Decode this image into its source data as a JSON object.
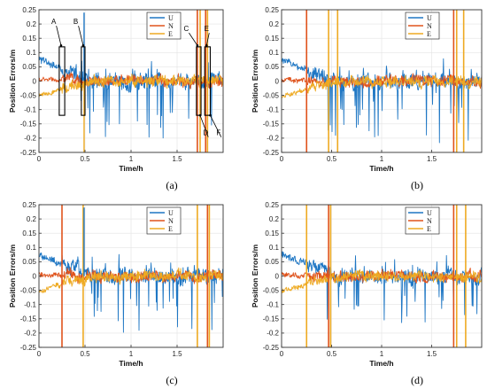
{
  "colors": {
    "U": "#1f77c4",
    "N": "#e0531c",
    "E": "#eeaa22",
    "axis": "#333333",
    "grid": "#e3e3e3"
  },
  "chart_data": [
    {
      "type": "line",
      "panel": "a",
      "caption": "(a)",
      "xlabel": "Time/h",
      "ylabel": "Position Errors/m",
      "xlim": [
        0,
        2
      ],
      "ylim": [
        -0.25,
        0.25
      ],
      "xticks": [
        "0",
        "0.5",
        "1",
        "1.5"
      ],
      "yticks": [
        "0.25",
        "0.2",
        "0.15",
        "0.1",
        "0.05",
        "0",
        "-0.05",
        "-0.1",
        "-0.15",
        "-0.2",
        "-0.25"
      ],
      "grid": true,
      "legend_position": "top-right",
      "series": [
        {
          "name": "U",
          "baseline_start": 0.075,
          "baseline_end": 0.0,
          "noise_amplitude": 0.05,
          "dip_depth": -0.2
        },
        {
          "name": "N",
          "baseline_start": 0.005,
          "baseline_end": 0.0,
          "noise_amplitude": 0.035
        },
        {
          "name": "E",
          "baseline_start": -0.055,
          "baseline_end": 0.0,
          "noise_amplitude": 0.035
        }
      ],
      "spikes": [
        {
          "series": "N",
          "x": 1.72
        },
        {
          "series": "E",
          "x": 1.75
        },
        {
          "series": "N",
          "x": 1.81
        },
        {
          "series": "E",
          "x": 1.83
        }
      ],
      "short_spikes": [
        {
          "series": "U",
          "x": 0.49,
          "y": 0.24
        },
        {
          "series": "E",
          "x": 0.49,
          "y": -0.25
        }
      ],
      "annotation_labels": [
        "A",
        "B",
        "C",
        "D",
        "E",
        "F"
      ],
      "highlight_boxes": [
        {
          "label": "A",
          "x0": 0.22,
          "x1": 0.28,
          "y0": -0.12,
          "y1": 0.12
        },
        {
          "label": "B",
          "x0": 0.46,
          "x1": 0.5,
          "y0": -0.12,
          "y1": 0.12
        },
        {
          "label": "D",
          "x0": 1.71,
          "x1": 1.76,
          "y0": -0.12,
          "y1": 0.12
        },
        {
          "label": "F",
          "x0": 1.8,
          "x1": 1.86,
          "y0": -0.12,
          "y1": 0.12
        }
      ]
    },
    {
      "type": "line",
      "panel": "b",
      "caption": "(b)",
      "xlabel": "Time/h",
      "ylabel": "Position Errors/m",
      "xlim": [
        0,
        2
      ],
      "ylim": [
        -0.25,
        0.25
      ],
      "xticks": [
        "0",
        "0.5",
        "1",
        "1.5"
      ],
      "yticks": [
        "0.25",
        "0.2",
        "0.15",
        "0.1",
        "0.05",
        "0",
        "-0.05",
        "-0.1",
        "-0.15",
        "-0.2",
        "-0.25"
      ],
      "grid": true,
      "legend_position": "top-right",
      "series": [
        {
          "name": "U",
          "baseline_start": 0.075,
          "baseline_end": 0.0,
          "noise_amplitude": 0.05,
          "dip_depth": -0.22
        },
        {
          "name": "N",
          "baseline_start": 0.005,
          "baseline_end": 0.0,
          "noise_amplitude": 0.035
        },
        {
          "name": "E",
          "baseline_start": -0.055,
          "baseline_end": 0.0,
          "noise_amplitude": 0.035
        }
      ],
      "spikes": [
        {
          "series": "N",
          "x": 0.25
        },
        {
          "series": "E",
          "x": 0.47
        },
        {
          "series": "E",
          "x": 0.56
        },
        {
          "series": "N",
          "x": 1.72
        },
        {
          "series": "E",
          "x": 1.75
        },
        {
          "series": "E",
          "x": 1.82
        }
      ],
      "short_spikes": []
    },
    {
      "type": "line",
      "panel": "c",
      "caption": "(c)",
      "xlabel": "Time/h",
      "ylabel": "Position Errors/m",
      "xlim": [
        0,
        2
      ],
      "ylim": [
        -0.25,
        0.25
      ],
      "xticks": [
        "0",
        "0.5",
        "1",
        "1.5"
      ],
      "yticks": [
        "0.25",
        "0.2",
        "0.15",
        "0.1",
        "0.05",
        "0",
        "-0.05",
        "-0.1",
        "-0.15",
        "-0.2",
        "-0.25"
      ],
      "grid": true,
      "legend_position": "top-right",
      "series": [
        {
          "name": "U",
          "baseline_start": 0.075,
          "baseline_end": 0.0,
          "noise_amplitude": 0.05,
          "dip_depth": -0.2
        },
        {
          "name": "N",
          "baseline_start": 0.005,
          "baseline_end": 0.0,
          "noise_amplitude": 0.035
        },
        {
          "name": "E",
          "baseline_start": -0.055,
          "baseline_end": 0.0,
          "noise_amplitude": 0.035
        }
      ],
      "spikes": [
        {
          "series": "N",
          "x": 0.25
        },
        {
          "series": "E",
          "x": 0.48
        },
        {
          "series": "E",
          "x": 1.72
        },
        {
          "series": "N",
          "x": 1.83
        },
        {
          "series": "E",
          "x": 1.85
        }
      ],
      "short_spikes": [
        {
          "series": "U",
          "x": 0.49,
          "y": 0.24
        }
      ]
    },
    {
      "type": "line",
      "panel": "d",
      "caption": "(d)",
      "xlabel": "Time/h",
      "ylabel": "Position Errors/m",
      "xlim": [
        0,
        2
      ],
      "ylim": [
        -0.25,
        0.25
      ],
      "xticks": [
        "0",
        "0.5",
        "1",
        "1.5"
      ],
      "yticks": [
        "0.25",
        "0.2",
        "0.15",
        "0.1",
        "0.05",
        "0",
        "-0.05",
        "-0.1",
        "-0.15",
        "-0.2",
        "-0.25"
      ],
      "grid": true,
      "legend_position": "top-right",
      "series": [
        {
          "name": "U",
          "baseline_start": 0.075,
          "baseline_end": 0.0,
          "noise_amplitude": 0.05,
          "dip_depth": -0.2
        },
        {
          "name": "N",
          "baseline_start": 0.005,
          "baseline_end": 0.0,
          "noise_amplitude": 0.035
        },
        {
          "name": "E",
          "baseline_start": -0.055,
          "baseline_end": 0.0,
          "noise_amplitude": 0.035
        }
      ],
      "spikes": [
        {
          "series": "E",
          "x": 0.25
        },
        {
          "series": "N",
          "x": 0.47
        },
        {
          "series": "E",
          "x": 0.49
        },
        {
          "series": "N",
          "x": 1.72
        },
        {
          "series": "E",
          "x": 1.75
        },
        {
          "series": "E",
          "x": 1.84
        }
      ],
      "short_spikes": []
    }
  ]
}
